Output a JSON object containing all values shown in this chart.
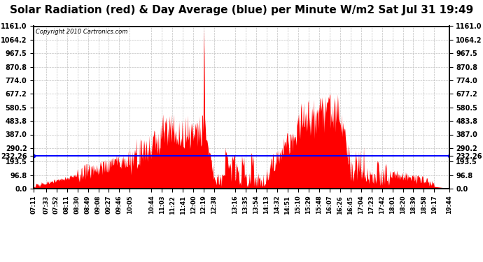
{
  "title": "Solar Radiation (red) & Day Average (blue) per Minute W/m2 Sat Jul 31 19:49",
  "copyright_text": "Copyright 2010 Cartronics.com",
  "yticks": [
    0.0,
    96.8,
    193.5,
    290.2,
    387.0,
    483.8,
    580.5,
    677.2,
    774.0,
    870.8,
    967.5,
    1064.2,
    1161.0
  ],
  "ytick_labels": [
    "0.0",
    "96.8",
    "193.5",
    "290.2",
    "387.0",
    "483.8",
    "580.5",
    "677.2",
    "774.0",
    "870.8",
    "967.5",
    "1064.2",
    "1161.0"
  ],
  "ymax": 1161.0,
  "ymin": 0.0,
  "day_average": 232.26,
  "fill_color": "#FF0000",
  "average_color": "#0000FF",
  "background_color": "#FFFFFF",
  "grid_color": "#C0C0C0",
  "title_fontsize": 11,
  "xtick_labels": [
    "07:11",
    "07:33",
    "07:52",
    "08:11",
    "08:30",
    "08:49",
    "09:08",
    "09:27",
    "09:46",
    "10:05",
    "10:44",
    "11:03",
    "11:22",
    "11:41",
    "12:00",
    "12:19",
    "12:38",
    "13:16",
    "13:35",
    "13:54",
    "14:13",
    "14:32",
    "14:51",
    "15:10",
    "15:29",
    "15:48",
    "16:07",
    "16:26",
    "16:45",
    "17:04",
    "17:23",
    "17:42",
    "18:01",
    "18:20",
    "18:39",
    "18:58",
    "19:17",
    "19:44"
  ]
}
